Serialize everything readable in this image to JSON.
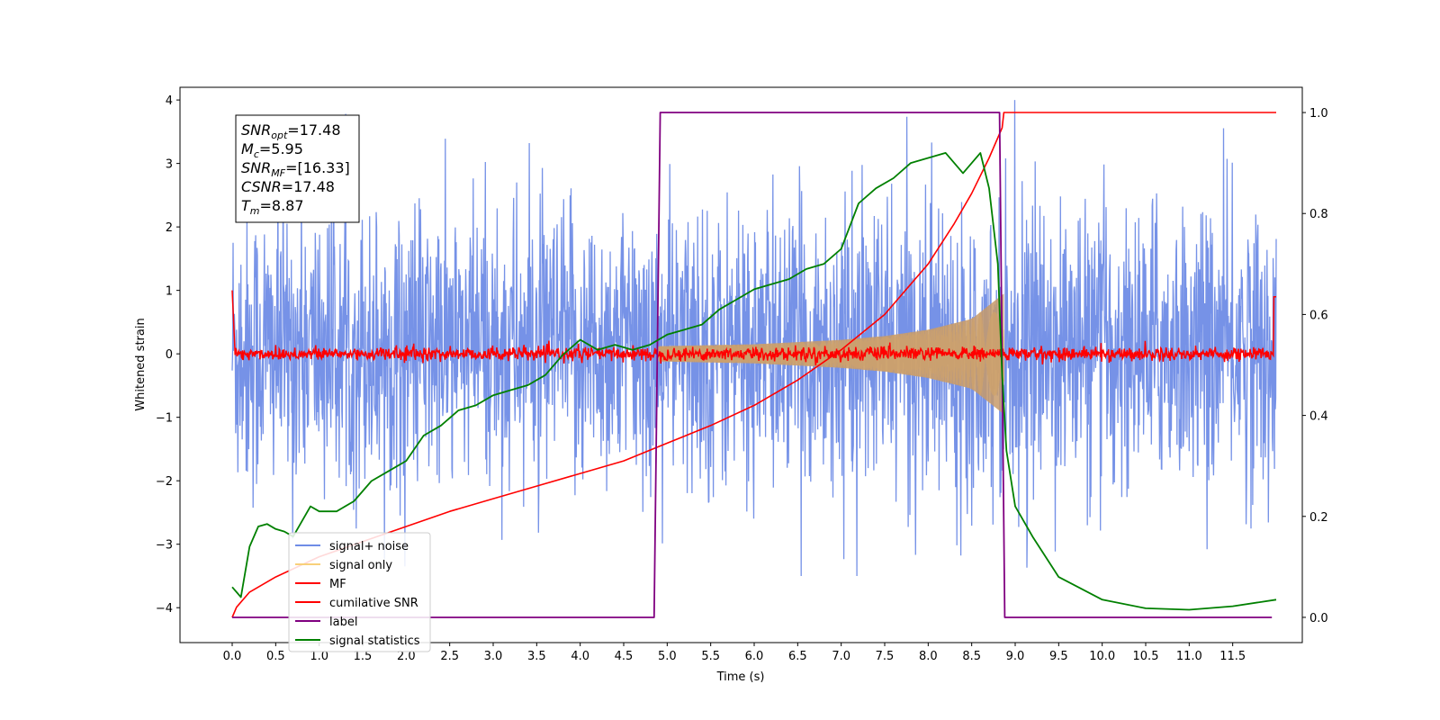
{
  "chart_data": {
    "type": "line",
    "xlabel": "Time (s)",
    "ylabel_left": "Whitened strain",
    "xlim": [
      -0.6,
      12.3
    ],
    "ylim_left": [
      -4.55,
      4.2
    ],
    "ylim_right": [
      -0.05,
      1.05
    ],
    "x_ticks": [
      "0.0",
      "0.5",
      "1.0",
      "1.5",
      "2.0",
      "2.5",
      "3.0",
      "3.5",
      "4.0",
      "4.5",
      "5.0",
      "5.5",
      "6.0",
      "6.5",
      "7.0",
      "7.5",
      "8.0",
      "8.5",
      "9.0",
      "9.5",
      "10.0",
      "10.5",
      "11.0",
      "11.5"
    ],
    "x_tick_values": [
      0,
      0.5,
      1,
      1.5,
      2,
      2.5,
      3,
      3.5,
      4,
      4.5,
      5,
      5.5,
      6,
      6.5,
      7,
      7.5,
      8,
      8.5,
      9,
      9.5,
      10,
      10.5,
      11,
      11.5
    ],
    "y_ticks_left": [
      "4",
      "3",
      "2",
      "1",
      "0",
      "−1",
      "−2",
      "−3",
      "−4"
    ],
    "y_tick_values_left": [
      4,
      3,
      2,
      1,
      0,
      -1,
      -2,
      -3,
      -4
    ],
    "y_ticks_right": [
      "1.0",
      "0.8",
      "0.6",
      "0.4",
      "0.2",
      "0.0"
    ],
    "y_tick_values_right": [
      1.0,
      0.8,
      0.6,
      0.4,
      0.2,
      0.0
    ],
    "legend_position": "lower-left",
    "series": [
      {
        "name": "signal+ noise",
        "color": "#6f8ce6",
        "axis": "left",
        "kind": "noise",
        "x_range": [
          0,
          12
        ],
        "amplitude_range": [
          -3.5,
          4.0
        ],
        "band_1sigma": [
          -1.8,
          2.0
        ]
      },
      {
        "name": "signal only",
        "color": "#f8d07a",
        "axis": "left",
        "kind": "chirp",
        "x_range": [
          4.9,
          8.87
        ],
        "envelope": [
          [
            4.9,
            0.12
          ],
          [
            6.0,
            0.15
          ],
          [
            7.0,
            0.22
          ],
          [
            7.5,
            0.28
          ],
          [
            8.0,
            0.38
          ],
          [
            8.5,
            0.55
          ],
          [
            8.87,
            0.95
          ]
        ]
      },
      {
        "name": "MF",
        "color": "#ff0000",
        "axis": "left",
        "kind": "flat-noise",
        "x_range": [
          0,
          12
        ],
        "level": 0.0,
        "spread": 0.12
      },
      {
        "name": "cumilative SNR",
        "color": "#ff0000",
        "axis": "right",
        "kind": "line",
        "x": [
          0.0,
          0.05,
          0.2,
          0.5,
          1.0,
          1.5,
          2.0,
          2.5,
          3.0,
          3.5,
          4.0,
          4.5,
          5.0,
          5.5,
          6.0,
          6.5,
          7.0,
          7.5,
          8.0,
          8.3,
          8.5,
          8.7,
          8.85,
          8.87,
          12.0
        ],
        "y": [
          0.0,
          0.02,
          0.05,
          0.08,
          0.12,
          0.15,
          0.18,
          0.21,
          0.235,
          0.26,
          0.285,
          0.31,
          0.345,
          0.38,
          0.42,
          0.47,
          0.53,
          0.6,
          0.7,
          0.78,
          0.84,
          0.91,
          0.97,
          1.0,
          1.0
        ]
      },
      {
        "name": "label",
        "color": "#800080",
        "axis": "right",
        "kind": "step",
        "x": [
          0.0,
          4.85,
          4.92,
          8.82,
          8.88,
          11.95
        ],
        "y": [
          0.0,
          0.0,
          1.0,
          1.0,
          0.0,
          0.0
        ]
      },
      {
        "name": "signal statistics",
        "color": "#008000",
        "axis": "right",
        "kind": "line",
        "x": [
          0.0,
          0.1,
          0.2,
          0.3,
          0.4,
          0.5,
          0.6,
          0.7,
          0.8,
          0.9,
          1.0,
          1.2,
          1.4,
          1.6,
          1.8,
          2.0,
          2.2,
          2.4,
          2.6,
          2.8,
          3.0,
          3.2,
          3.4,
          3.6,
          3.8,
          4.0,
          4.2,
          4.4,
          4.6,
          4.8,
          5.0,
          5.2,
          5.4,
          5.6,
          5.8,
          6.0,
          6.2,
          6.4,
          6.6,
          6.8,
          7.0,
          7.2,
          7.4,
          7.6,
          7.8,
          8.0,
          8.2,
          8.4,
          8.6,
          8.7,
          8.8,
          8.85,
          8.9,
          9.0,
          9.2,
          9.5,
          10.0,
          10.5,
          11.0,
          11.5,
          12.0
        ],
        "y": [
          0.06,
          0.04,
          0.14,
          0.18,
          0.185,
          0.175,
          0.17,
          0.16,
          0.19,
          0.22,
          0.21,
          0.21,
          0.23,
          0.27,
          0.29,
          0.31,
          0.36,
          0.38,
          0.41,
          0.42,
          0.44,
          0.45,
          0.46,
          0.48,
          0.52,
          0.55,
          0.53,
          0.54,
          0.53,
          0.54,
          0.56,
          0.57,
          0.58,
          0.61,
          0.63,
          0.65,
          0.66,
          0.67,
          0.69,
          0.7,
          0.73,
          0.82,
          0.85,
          0.87,
          0.9,
          0.91,
          0.92,
          0.88,
          0.92,
          0.85,
          0.7,
          0.48,
          0.33,
          0.22,
          0.16,
          0.08,
          0.035,
          0.018,
          0.015,
          0.022,
          0.035
        ]
      }
    ],
    "annotation": {
      "lines": [
        {
          "base": "SNR",
          "sub": "opt",
          "value": "=17.48"
        },
        {
          "base": "M",
          "sub": "c",
          "value": "=5.95"
        },
        {
          "base": "SNR",
          "sub": "MF",
          "value": "=[16.33]"
        },
        {
          "base": "CSNR",
          "sub": "",
          "value": "=17.48"
        },
        {
          "base": "T",
          "sub": "m",
          "value": "=8.87"
        }
      ]
    }
  }
}
